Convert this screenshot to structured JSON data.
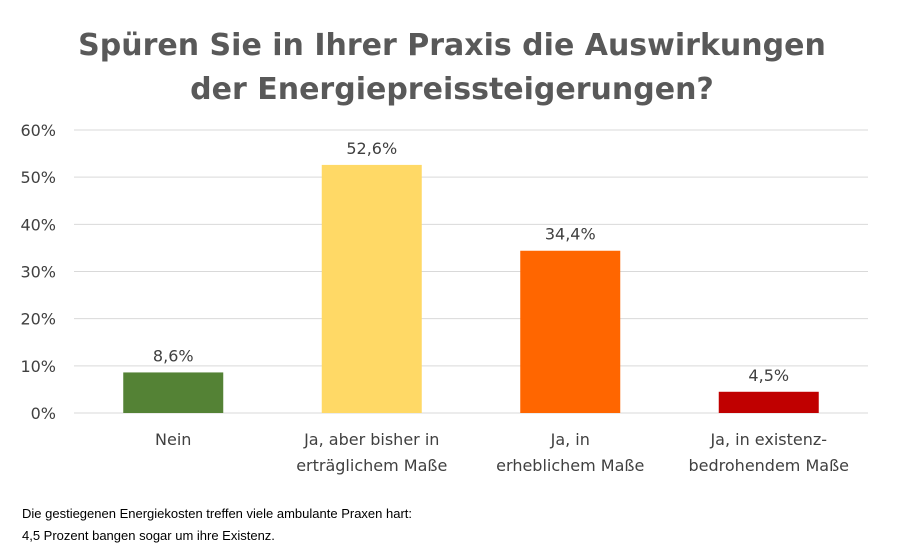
{
  "chart_data": {
    "type": "bar",
    "title": [
      "Spüren Sie in Ihrer Praxis die Auswirkungen",
      "der Energiepreissteigerungen?"
    ],
    "categories": [
      [
        "Nein"
      ],
      [
        "Ja, aber bisher in",
        "erträglichem Maße"
      ],
      [
        "Ja, in",
        "erheblichem Maße"
      ],
      [
        "Ja, in existenz-",
        "bedrohendem Maße"
      ]
    ],
    "values": [
      8.6,
      52.6,
      34.4,
      4.5
    ],
    "value_labels": [
      "8,6%",
      "52,6%",
      "34,4%",
      "4,5%"
    ],
    "colors": [
      "#548235",
      "#FFD966",
      "#FF6600",
      "#C00000"
    ],
    "yticks": [
      0,
      10,
      20,
      30,
      40,
      50,
      60
    ],
    "ytick_labels": [
      "0%",
      "10%",
      "20%",
      "30%",
      "40%",
      "50%",
      "60%"
    ],
    "ylim": [
      0,
      60
    ],
    "grid": true,
    "gridline_color": "#D9D9D9"
  },
  "caption": [
    "Die gestiegenen Energiekosten treffen viele ambulante Praxen hart:",
    "4,5 Prozent bangen sogar um ihre Existenz."
  ]
}
